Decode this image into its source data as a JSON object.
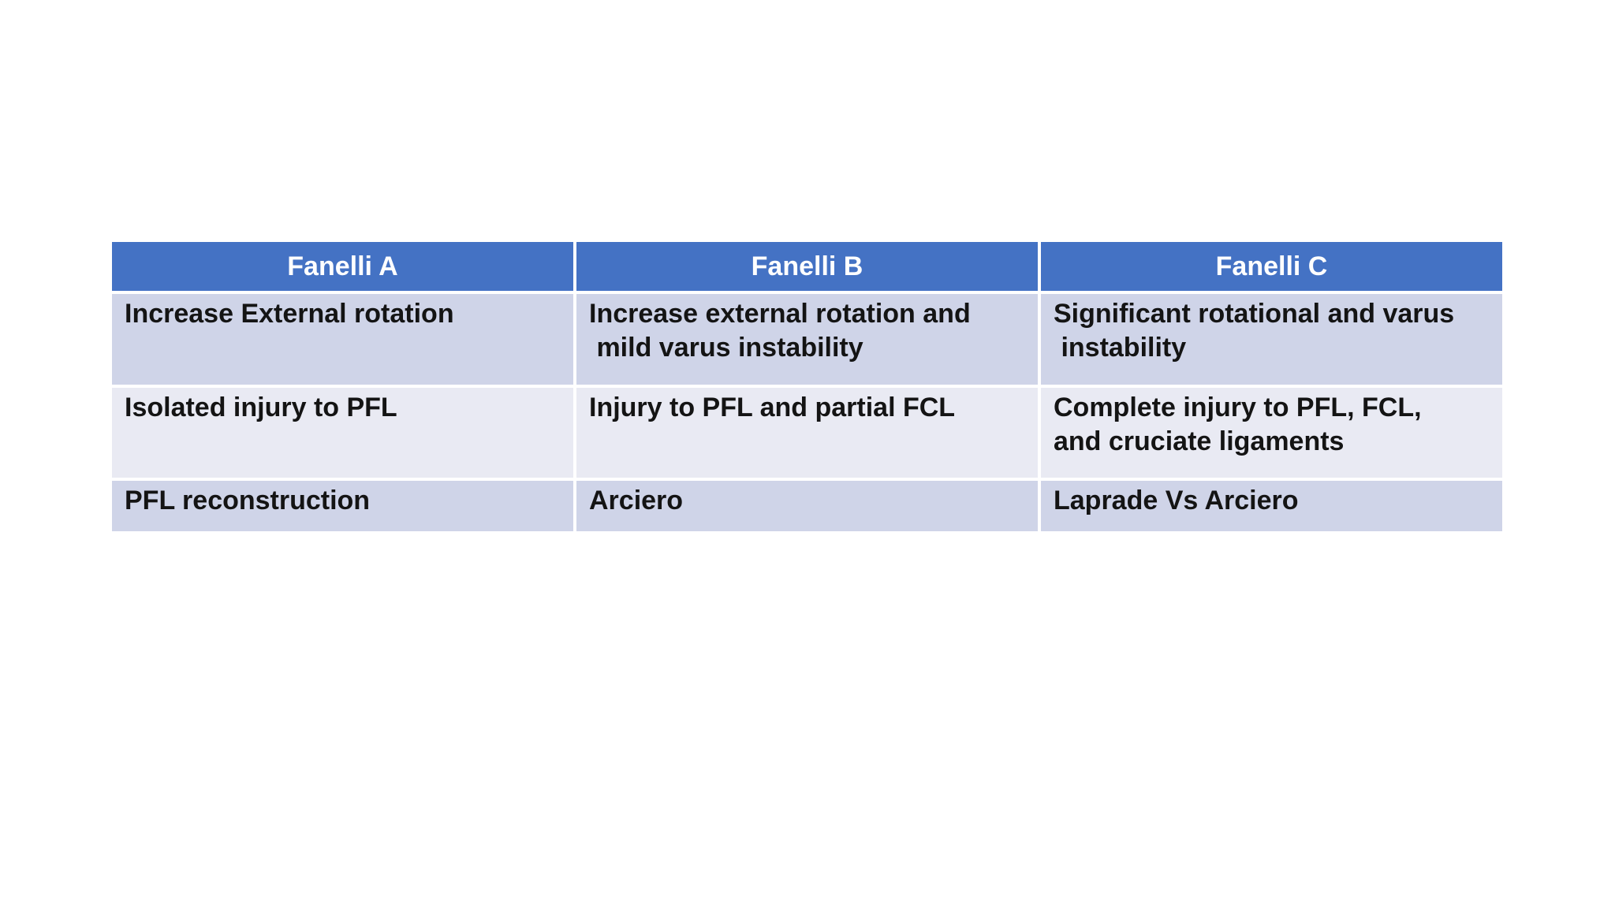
{
  "slide": {
    "background": "#FFFFFF"
  },
  "table": {
    "columns": [
      "Fanelli A",
      "Fanelli B",
      "Fanelli C"
    ],
    "rows": [
      [
        "Increase External rotation",
        "Increase external rotation and\n mild varus instability",
        "Significant rotational and varus\n instability"
      ],
      [
        "Isolated injury to PFL",
        "Injury to PFL and partial FCL",
        "Complete injury to PFL, FCL,\nand cruciate ligaments"
      ],
      [
        "PFL reconstruction",
        "Arciero",
        "Laprade Vs Arciero"
      ]
    ],
    "colors": {
      "header_bg": "#4472C4",
      "header_text": "#FFFFFF",
      "row_odd_bg": "#CFD4E8",
      "row_even_bg": "#E9EAF3",
      "body_text": "#141414",
      "divider": "#FFFFFF",
      "slide_bg": "#FFFFFF"
    }
  }
}
